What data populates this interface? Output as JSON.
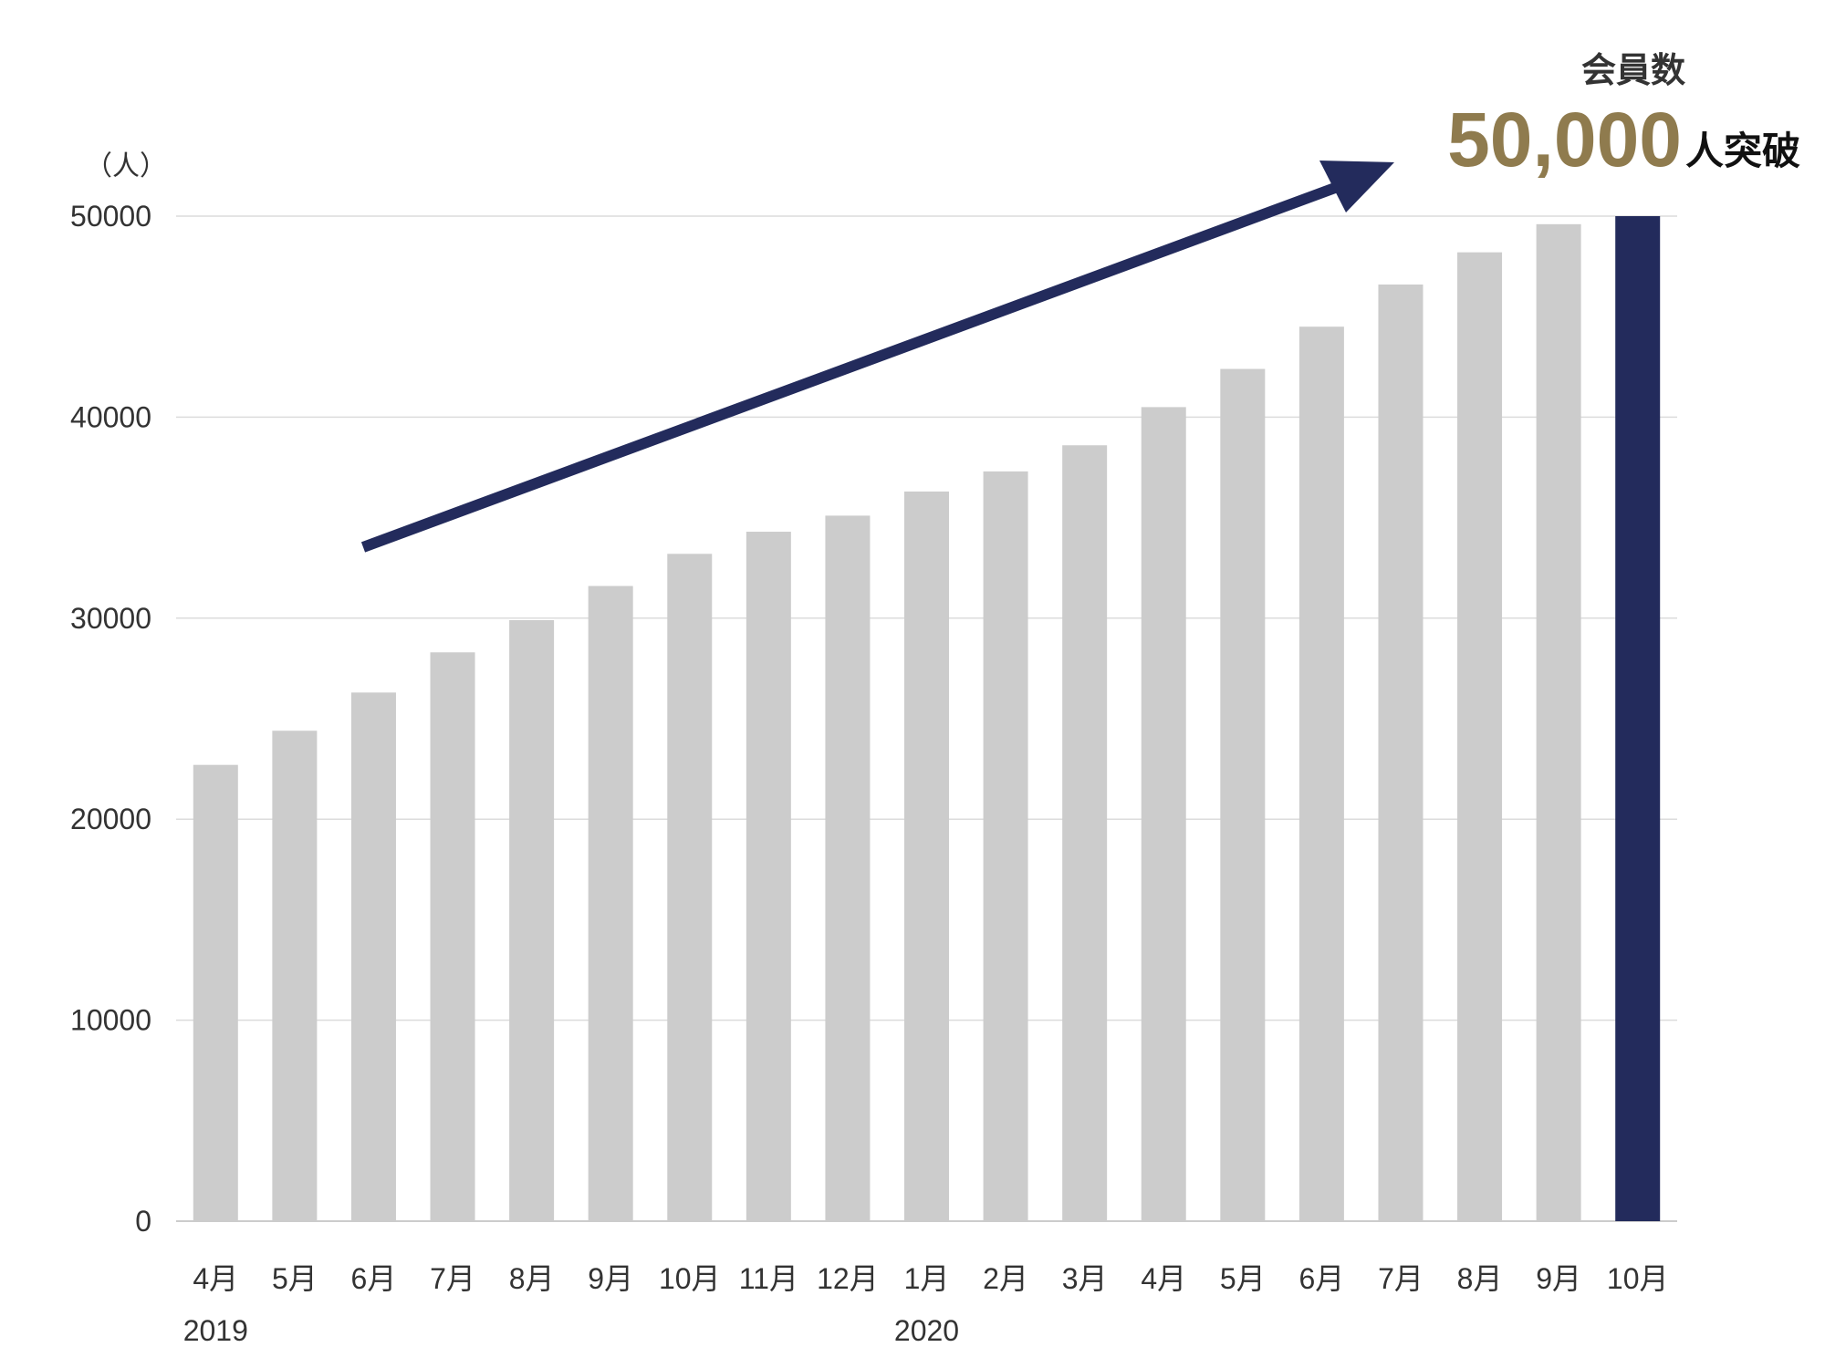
{
  "chart_data": {
    "type": "bar",
    "y_unit": "（人）",
    "ylim": [
      0,
      50000
    ],
    "y_ticks": [
      "0",
      "10000",
      "20000",
      "30000",
      "40000",
      "50000"
    ],
    "grid": true,
    "categories": [
      "4月",
      "5月",
      "6月",
      "7月",
      "8月",
      "9月",
      "10月",
      "11月",
      "12月",
      "1月",
      "2月",
      "3月",
      "4月",
      "5月",
      "6月",
      "7月",
      "8月",
      "9月",
      "10月"
    ],
    "year_labels": [
      {
        "index": 0,
        "label": "2019"
      },
      {
        "index": 9,
        "label": "2020"
      }
    ],
    "values": [
      22700,
      24400,
      26300,
      28300,
      29900,
      31600,
      33200,
      34300,
      35100,
      36300,
      37300,
      38600,
      40500,
      42400,
      44500,
      46600,
      48200,
      49600,
      50000
    ],
    "highlight_index": 18,
    "annotation": {
      "label": "会員数",
      "value_text": "50,000",
      "suffix": "人突破"
    },
    "colors": {
      "bar": "#cccccc",
      "highlight": "#232b5c",
      "arrow": "#232b5c",
      "value_text": "#8f7b4e",
      "grid": "#dcdcdc"
    }
  }
}
